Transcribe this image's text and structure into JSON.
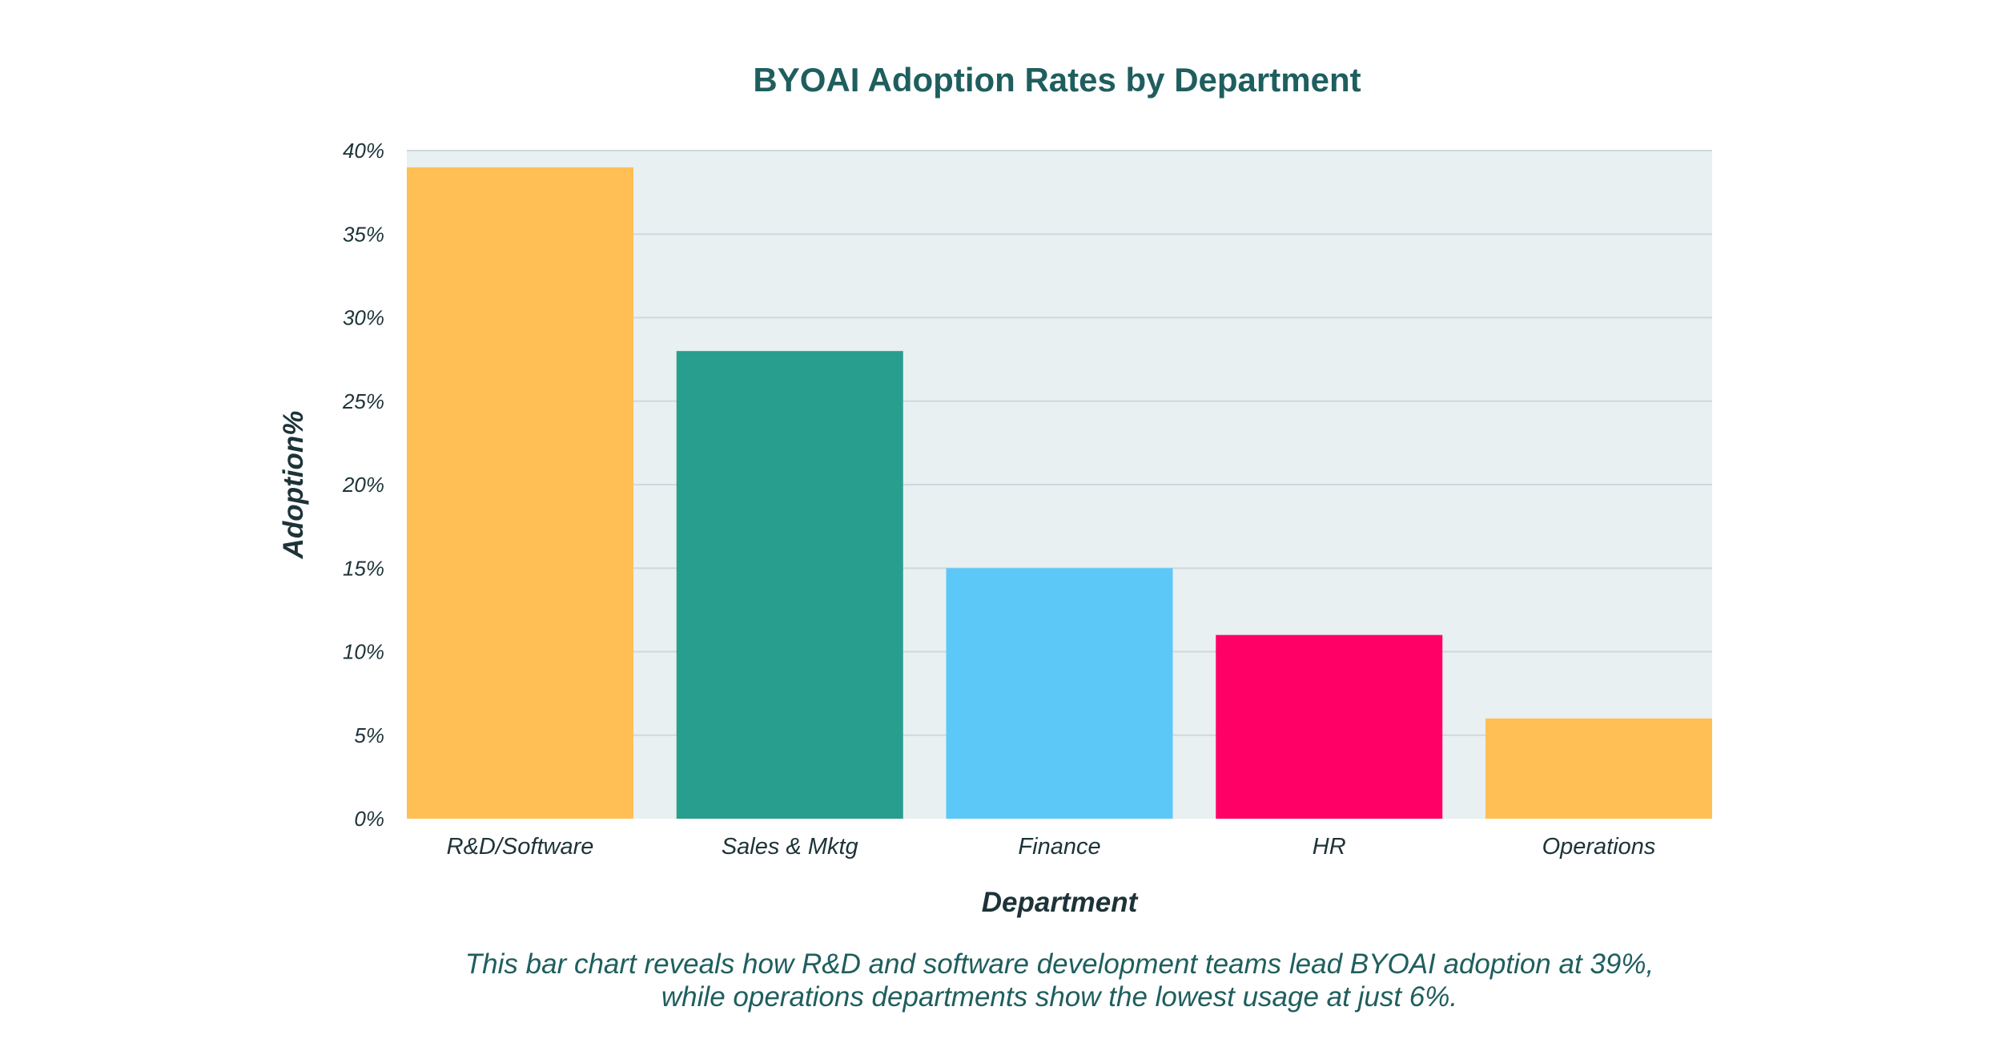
{
  "chart_data": {
    "type": "bar",
    "title": "BYOAI Adoption Rates by Department",
    "xlabel": "Department",
    "ylabel": "Adoption%",
    "categories": [
      "R&D/Software",
      "Sales & Mktg",
      "Finance",
      "HR",
      "Operations"
    ],
    "values": [
      39,
      28,
      15,
      11,
      6
    ],
    "colors": [
      "#ffbf55",
      "#279e8e",
      "#5bc8f8",
      "#ff0066",
      "#ffbf55"
    ],
    "ylim": [
      0,
      40
    ],
    "yticks": [
      0,
      5,
      10,
      15,
      20,
      25,
      30,
      35,
      40
    ],
    "ytick_labels": [
      "0%",
      "5%",
      "10%",
      "15%",
      "20%",
      "25%",
      "30%",
      "35%",
      "40%"
    ],
    "grid": true,
    "plot_background": "#e8f0f1"
  },
  "caption": {
    "line1": "This bar chart reveals how R&D and software development teams lead BYOAI adoption at 39%,",
    "line2": "while operations departments show the lowest usage at just 6%."
  }
}
